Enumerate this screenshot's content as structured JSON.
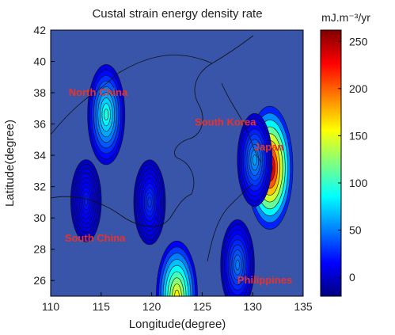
{
  "chart_data": {
    "type": "heatmap",
    "title": "Custal strain energy density rate",
    "xlabel": "Longitude(degree)",
    "ylabel": "Latitude(degree)",
    "xlim": [
      110,
      135
    ],
    "ylim": [
      25,
      42
    ],
    "x_ticks": [
      110,
      115,
      120,
      125,
      130,
      135
    ],
    "y_ticks": [
      26,
      28,
      30,
      32,
      34,
      36,
      38,
      40,
      42
    ],
    "colorbar": {
      "unit": "mJ.m⁻³/yr",
      "range": [
        -20,
        262
      ],
      "ticks": [
        0,
        50,
        100,
        150,
        200,
        250
      ]
    },
    "contour_style": "filled contours with black contour lines",
    "background_value": -5,
    "regions": [
      {
        "name": "North China",
        "lon": 114.7,
        "lat": 37.8
      },
      {
        "name": "South Korea",
        "lon": 127.3,
        "lat": 35.9
      },
      {
        "name": "Japan",
        "lon": 131.6,
        "lat": 34.3
      },
      {
        "name": "South China",
        "lon": 114.4,
        "lat": 28.5
      },
      {
        "name": "Philippines",
        "lon": 131.2,
        "lat": 25.8
      }
    ],
    "hotspots": [
      {
        "lon": 131.7,
        "lat": 33.2,
        "peak": 262
      },
      {
        "lon": 115.5,
        "lat": 36.6,
        "peak": 95
      },
      {
        "lon": 122.5,
        "lat": 25.0,
        "peak": 160
      },
      {
        "lon": 119.8,
        "lat": 31.0,
        "peak": 30
      },
      {
        "lon": 113.5,
        "lat": 31.1,
        "peak": 22
      },
      {
        "lon": 128.5,
        "lat": 27.0,
        "peak": 50
      },
      {
        "lon": 130.2,
        "lat": 33.7,
        "peak": 60
      }
    ]
  }
}
